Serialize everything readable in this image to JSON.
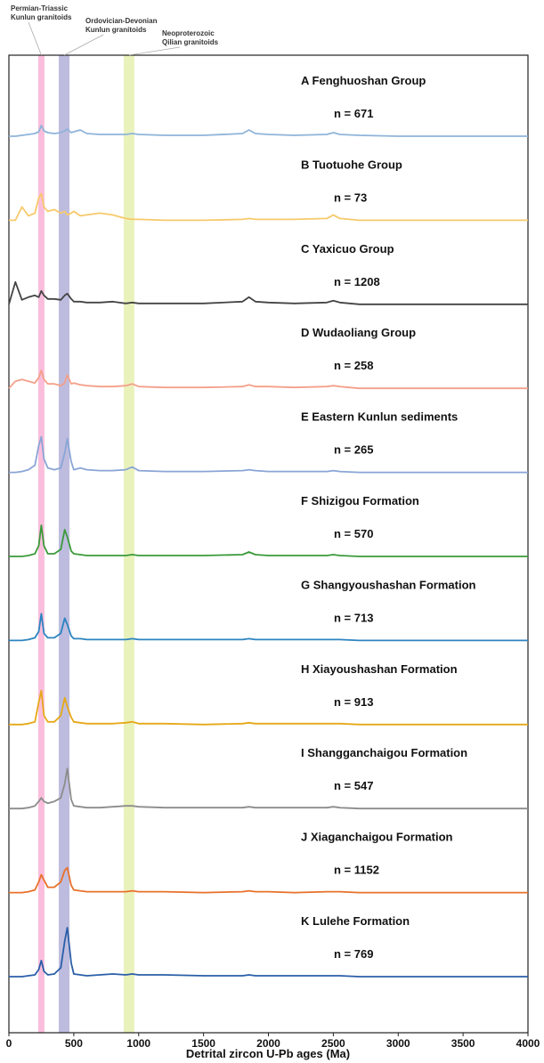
{
  "chart_data": {
    "type": "line",
    "xlabel": "Detrital zircon U-Pb ages (Ma)",
    "xlim": [
      0,
      4000
    ],
    "xticks": [
      0,
      500,
      1000,
      1500,
      2000,
      2500,
      3000,
      3500,
      4000
    ],
    "ylim": [
      0,
      100
    ],
    "bands": [
      {
        "range": [
          226,
          274
        ],
        "color": "#f9b3d6",
        "label": [
          "Permian-Triassic",
          "Kunlun granitoids"
        ]
      },
      {
        "range": [
          384,
          467
        ],
        "color": "#b3b0d8",
        "label": [
          "Ordovician-Devonian",
          "Kunlun granitoids"
        ]
      },
      {
        "range": [
          885,
          967
        ],
        "color": "#e6f0b0",
        "label": [
          "Neoproterozoic",
          "Qilian granitoids"
        ]
      }
    ],
    "x": [
      0,
      50,
      100,
      150,
      200,
      230,
      250,
      270,
      300,
      350,
      400,
      430,
      450,
      480,
      500,
      550,
      600,
      700,
      800,
      900,
      950,
      1000,
      1200,
      1500,
      1800,
      1850,
      1900,
      2000,
      2200,
      2450,
      2500,
      2550,
      2700,
      3000,
      3500,
      4000
    ],
    "series": [
      {
        "name": "A Fenghuoshan Group",
        "n_label": "n = 671",
        "color": "#8fb4d9",
        "values": [
          0,
          0,
          1,
          2,
          3,
          5,
          12,
          6,
          4,
          3,
          4,
          6,
          8,
          4,
          5,
          7,
          3,
          2,
          2,
          2,
          3,
          2,
          1,
          1,
          3,
          7,
          3,
          2,
          1,
          2,
          4,
          2,
          1,
          0,
          0,
          0
        ]
      },
      {
        "name": "B Tuotuohe Group",
        "n_label": "n = 73",
        "color": "#f7c96b",
        "values": [
          0,
          0,
          15,
          5,
          8,
          25,
          30,
          15,
          10,
          12,
          8,
          10,
          6,
          8,
          10,
          5,
          6,
          8,
          6,
          2,
          1,
          1,
          0,
          0,
          1,
          2,
          1,
          1,
          1,
          2,
          6,
          2,
          0,
          0,
          0,
          0
        ]
      },
      {
        "name": "C Yaxicuo Group",
        "n_label": "n = 1208",
        "color": "#444444",
        "values": [
          0,
          25,
          5,
          8,
          10,
          8,
          15,
          10,
          6,
          6,
          5,
          10,
          12,
          6,
          3,
          3,
          2,
          2,
          3,
          1,
          2,
          1,
          1,
          1,
          3,
          8,
          3,
          2,
          1,
          2,
          4,
          2,
          0,
          0,
          0,
          0
        ]
      },
      {
        "name": "D Wudaoliang Group",
        "n_label": "n = 258",
        "color": "#f4a08a",
        "values": [
          0,
          8,
          10,
          8,
          6,
          12,
          20,
          10,
          5,
          5,
          3,
          6,
          15,
          5,
          6,
          4,
          3,
          2,
          2,
          3,
          5,
          2,
          1,
          1,
          2,
          4,
          2,
          2,
          1,
          2,
          3,
          2,
          0,
          0,
          0,
          0
        ]
      },
      {
        "name": "E Eastern Kunlun sediments",
        "n_label": "n = 265",
        "color": "#8aa5d6",
        "values": [
          0,
          0,
          1,
          3,
          8,
          30,
          40,
          15,
          5,
          3,
          5,
          22,
          38,
          12,
          3,
          5,
          3,
          2,
          2,
          3,
          6,
          2,
          1,
          1,
          2,
          3,
          2,
          1,
          1,
          1,
          2,
          1,
          0,
          0,
          0,
          0
        ]
      },
      {
        "name": "F Shizigou Formation",
        "n_label": "n = 570",
        "color": "#3a9a3a",
        "values": [
          0,
          0,
          0,
          1,
          3,
          12,
          35,
          12,
          3,
          3,
          8,
          30,
          22,
          6,
          3,
          2,
          1,
          1,
          1,
          1,
          2,
          1,
          1,
          1,
          2,
          5,
          2,
          1,
          1,
          1,
          2,
          1,
          0,
          0,
          0,
          0
        ]
      },
      {
        "name": "G Shangyoushashan Formation",
        "n_label": "n = 713",
        "color": "#2b84c0",
        "values": [
          0,
          0,
          0,
          1,
          3,
          10,
          30,
          8,
          3,
          3,
          8,
          25,
          18,
          5,
          2,
          2,
          1,
          1,
          1,
          1,
          2,
          1,
          1,
          1,
          1,
          2,
          1,
          1,
          1,
          1,
          1,
          1,
          0,
          0,
          0,
          0
        ]
      },
      {
        "name": "H Xiayoushashan Formation",
        "n_label": "n = 913",
        "color": "#e6a817",
        "values": [
          0,
          0,
          0,
          1,
          3,
          25,
          38,
          10,
          3,
          3,
          10,
          30,
          20,
          8,
          3,
          2,
          1,
          1,
          1,
          2,
          3,
          1,
          1,
          0,
          1,
          2,
          1,
          1,
          1,
          1,
          1,
          1,
          0,
          0,
          0,
          0
        ]
      },
      {
        "name": "I Shangganchaigou Formation",
        "n_label": "n = 547",
        "color": "#8c8c8c",
        "values": [
          0,
          0,
          0,
          1,
          3,
          8,
          12,
          8,
          6,
          8,
          12,
          28,
          45,
          10,
          3,
          2,
          1,
          1,
          2,
          3,
          3,
          2,
          1,
          1,
          1,
          2,
          1,
          1,
          1,
          1,
          2,
          1,
          0,
          0,
          0,
          0
        ]
      },
      {
        "name": "J Xiaganchaigou Formation",
        "n_label": "n = 1152",
        "color": "#e8702a",
        "values": [
          0,
          0,
          0,
          1,
          3,
          12,
          20,
          14,
          6,
          6,
          12,
          25,
          28,
          8,
          3,
          2,
          1,
          1,
          1,
          1,
          2,
          1,
          1,
          0,
          1,
          2,
          1,
          1,
          0,
          1,
          1,
          1,
          0,
          0,
          0,
          0
        ]
      },
      {
        "name": "K Lulehe Formation",
        "n_label": "n = 769",
        "color": "#2a5ea8",
        "values": [
          0,
          0,
          0,
          1,
          2,
          8,
          18,
          6,
          2,
          3,
          10,
          40,
          55,
          15,
          3,
          2,
          1,
          2,
          3,
          2,
          3,
          2,
          2,
          1,
          1,
          2,
          1,
          1,
          1,
          1,
          1,
          1,
          0,
          0,
          0,
          0
        ]
      }
    ]
  }
}
